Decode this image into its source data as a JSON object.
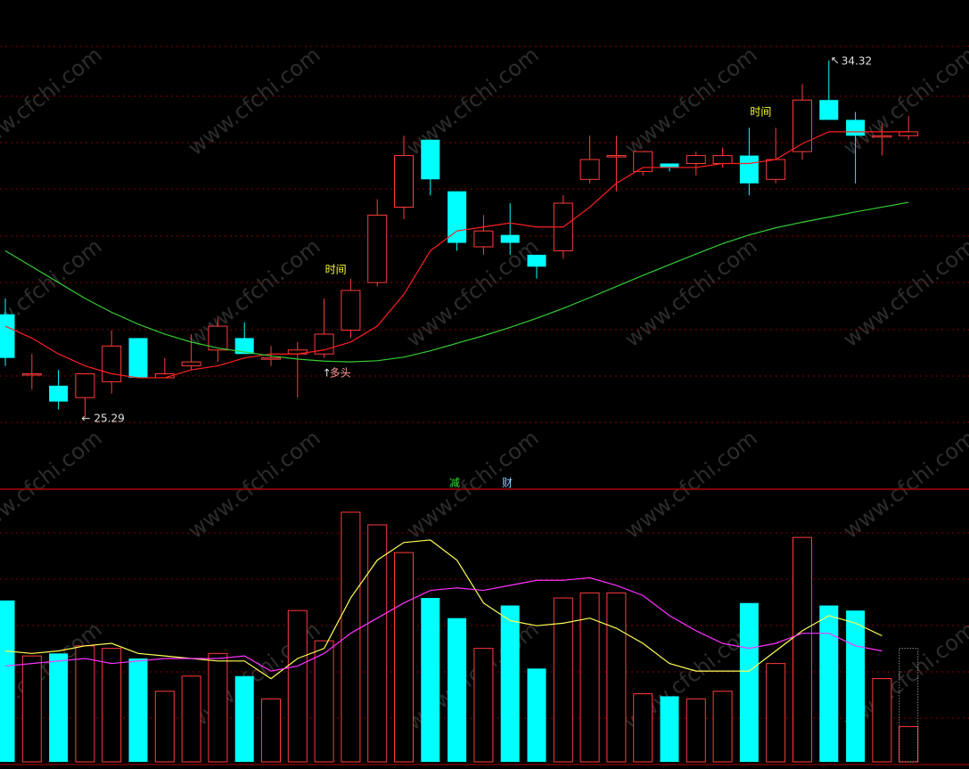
{
  "chart_data": [
    {
      "type": "candlestick",
      "title": "",
      "ylim": [
        24.3,
        34.9
      ],
      "max_marker": "34.32",
      "min_marker": "25.29",
      "candles": [
        {
          "o": 27.9,
          "c": 26.8,
          "h": 28.3,
          "l": 26.6
        },
        {
          "o": 26.4,
          "c": 26.4,
          "h": 26.9,
          "l": 26.0
        },
        {
          "o": 26.1,
          "c": 25.7,
          "h": 26.5,
          "l": 25.5
        },
        {
          "o": 25.8,
          "c": 26.4,
          "h": 26.4,
          "l": 25.3
        },
        {
          "o": 26.2,
          "c": 27.1,
          "h": 27.5,
          "l": 25.9
        },
        {
          "o": 27.3,
          "c": 26.3,
          "h": 27.3,
          "l": 26.3
        },
        {
          "o": 26.3,
          "c": 26.4,
          "h": 26.8,
          "l": 26.3
        },
        {
          "o": 26.6,
          "c": 26.7,
          "h": 27.4,
          "l": 26.5
        },
        {
          "o": 27.0,
          "c": 27.6,
          "h": 27.8,
          "l": 26.7
        },
        {
          "o": 27.3,
          "c": 26.9,
          "h": 27.7,
          "l": 26.9
        },
        {
          "o": 26.8,
          "c": 26.8,
          "h": 27.1,
          "l": 26.6
        },
        {
          "o": 26.9,
          "c": 27.0,
          "h": 27.2,
          "l": 25.8
        },
        {
          "o": 26.9,
          "c": 27.4,
          "h": 28.3,
          "l": 26.8
        },
        {
          "o": 27.5,
          "c": 28.5,
          "h": 28.8,
          "l": 27.3
        },
        {
          "o": 28.7,
          "c": 30.4,
          "h": 30.8,
          "l": 28.6
        },
        {
          "o": 30.6,
          "c": 31.9,
          "h": 32.4,
          "l": 30.3
        },
        {
          "o": 32.3,
          "c": 31.3,
          "h": 32.3,
          "l": 30.9
        },
        {
          "o": 31.0,
          "c": 29.7,
          "h": 31.0,
          "l": 29.5
        },
        {
          "o": 29.6,
          "c": 30.0,
          "h": 30.4,
          "l": 29.4
        },
        {
          "o": 29.9,
          "c": 29.7,
          "h": 30.7,
          "l": 29.4
        },
        {
          "o": 29.4,
          "c": 29.1,
          "h": 29.4,
          "l": 28.8
        },
        {
          "o": 29.5,
          "c": 30.7,
          "h": 30.9,
          "l": 29.3
        },
        {
          "o": 31.3,
          "c": 31.8,
          "h": 32.4,
          "l": 31.2
        },
        {
          "o": 31.9,
          "c": 31.9,
          "h": 32.4,
          "l": 31.0
        },
        {
          "o": 31.5,
          "c": 32.0,
          "h": 32.0,
          "l": 31.4
        },
        {
          "o": 31.7,
          "c": 31.6,
          "h": 31.7,
          "l": 31.5
        },
        {
          "o": 31.7,
          "c": 31.9,
          "h": 32.0,
          "l": 31.4
        },
        {
          "o": 31.7,
          "c": 31.9,
          "h": 32.1,
          "l": 31.6
        },
        {
          "o": 31.9,
          "c": 31.2,
          "h": 32.6,
          "l": 30.9
        },
        {
          "o": 31.3,
          "c": 31.8,
          "h": 32.6,
          "l": 31.2
        },
        {
          "o": 32.0,
          "c": 33.3,
          "h": 33.7,
          "l": 31.8
        },
        {
          "o": 33.3,
          "c": 32.8,
          "h": 34.3,
          "l": 32.8
        },
        {
          "o": 32.8,
          "c": 32.4,
          "h": 33.0,
          "l": 31.2
        },
        {
          "o": 32.4,
          "c": 32.4,
          "h": 32.7,
          "l": 31.9
        },
        {
          "o": 32.4,
          "c": 32.5,
          "h": 32.9,
          "l": 32.3
        }
      ],
      "ma_short": [
        27.6,
        27.3,
        26.9,
        26.6,
        26.4,
        26.3,
        26.3,
        26.5,
        26.6,
        26.8,
        26.9,
        26.9,
        27.0,
        27.2,
        27.6,
        28.4,
        29.5,
        30.0,
        30.1,
        30.2,
        30.1,
        30.1,
        30.6,
        31.2,
        31.6,
        31.6,
        31.6,
        31.7,
        31.7,
        31.8,
        32.2,
        32.5,
        32.5,
        32.5,
        32.5
      ],
      "ma_long": [
        29.5,
        29.1,
        28.7,
        28.3,
        27.95,
        27.65,
        27.4,
        27.2,
        27.05,
        26.95,
        26.85,
        26.77,
        26.72,
        26.7,
        26.73,
        26.82,
        26.98,
        27.17,
        27.36,
        27.57,
        27.8,
        28.05,
        28.32,
        28.6,
        28.88,
        29.15,
        29.42,
        29.68,
        29.9,
        30.08,
        30.22,
        30.35,
        30.48,
        30.6,
        30.72
      ],
      "annotations": [
        {
          "text": "时间",
          "index": 12
        },
        {
          "text": "多头",
          "index": 12
        },
        {
          "text": "时间",
          "index": 28
        }
      ]
    },
    {
      "type": "bar",
      "title": "",
      "ylim": [
        0,
        100
      ],
      "volumes": [
        64,
        42,
        43,
        46,
        45,
        41,
        28,
        34,
        43,
        34,
        25,
        60,
        48,
        99,
        94,
        83,
        65,
        57,
        45,
        62,
        37,
        65,
        67,
        67,
        27,
        26,
        25,
        28,
        63,
        39,
        89,
        62,
        60,
        33,
        14
      ],
      "vol_ma_fast": [
        44,
        43,
        44,
        46,
        47,
        43,
        42,
        41,
        40,
        40,
        33,
        41,
        45,
        65,
        80,
        87,
        88,
        80,
        63,
        56,
        54,
        55,
        57,
        53,
        47,
        39,
        36,
        36,
        36,
        44,
        52,
        58,
        55,
        50
      ],
      "vol_ma_slow": [
        38,
        39,
        40,
        41,
        39,
        40,
        41,
        41,
        41,
        42,
        36,
        38,
        43,
        51,
        57,
        63,
        68,
        69,
        68,
        70,
        72,
        72,
        73,
        70,
        66,
        58,
        52,
        47,
        45,
        47,
        51,
        51,
        46,
        44
      ],
      "last_bar_dotted_cap": 45,
      "tags": [
        {
          "text": "减",
          "color": "#33dd33"
        },
        {
          "text": "财",
          "color": "#88ccff"
        }
      ]
    }
  ],
  "colors": {
    "up": "#ff3b3b",
    "down": "#00ffff",
    "ma_short": "#ff2020",
    "ma_long": "#33cc33",
    "vol_ma_fast": "#ffff55",
    "vol_ma_slow": "#ff33ff",
    "grid": "#8a0000",
    "separator": "#b00000",
    "annotation": "#ffff33",
    "label": "#e0e0e0",
    "watermark": "#2c2c2c"
  },
  "watermark": "www.cfchi.com"
}
